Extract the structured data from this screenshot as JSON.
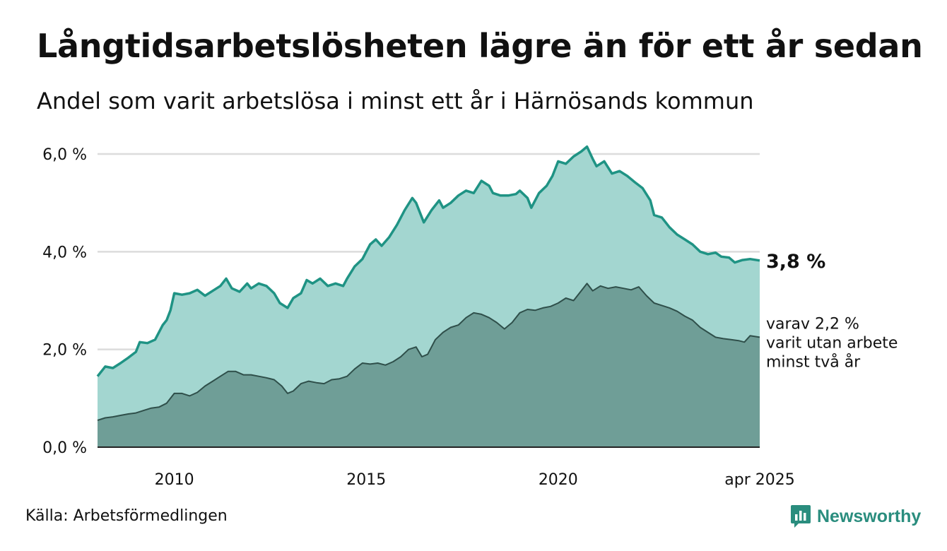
{
  "header": {
    "title": "Långtidsarbetslösheten lägre än för ett år sedan",
    "subtitle": "Andel som varit arbetslösa i minst ett år i Härnösands kommun"
  },
  "footer": {
    "source": "Källa: Arbetsförmedlingen",
    "brand": "Newsworthy"
  },
  "colors": {
    "total_line": "#1f9384",
    "total_fill": "#a3d6d0",
    "sub_line": "#2f4f4a",
    "sub_fill": "#6f9e97",
    "grid": "#dcdcdc",
    "brand": "#2a8d7e"
  },
  "chart_data": {
    "type": "area",
    "x_unit": "year",
    "ylim": [
      0,
      6.0
    ],
    "y_ticks": [
      {
        "value": 0,
        "label": "0,0 %"
      },
      {
        "value": 2,
        "label": "2,0 %"
      },
      {
        "value": 4,
        "label": "4,0 %"
      },
      {
        "value": 6,
        "label": "6,0 %"
      }
    ],
    "x_ticks": [
      {
        "value": 2010,
        "label": "2010"
      },
      {
        "value": 2015,
        "label": "2015"
      },
      {
        "value": 2020,
        "label": "2020"
      },
      {
        "value": 2025.25,
        "label": "apr 2025"
      }
    ],
    "grid": true,
    "end_label": "3,8 %",
    "note_lines": [
      "varav 2,2 %",
      "varit utan arbete",
      "minst två år"
    ],
    "series": [
      {
        "key": "total",
        "points": [
          [
            2008.0,
            1.45
          ],
          [
            2008.2,
            1.65
          ],
          [
            2008.4,
            1.62
          ],
          [
            2008.6,
            1.72
          ],
          [
            2008.8,
            1.83
          ],
          [
            2009.0,
            1.95
          ],
          [
            2009.1,
            2.15
          ],
          [
            2009.3,
            2.13
          ],
          [
            2009.5,
            2.2
          ],
          [
            2009.7,
            2.5
          ],
          [
            2009.8,
            2.6
          ],
          [
            2009.9,
            2.8
          ],
          [
            2010.0,
            3.15
          ],
          [
            2010.2,
            3.12
          ],
          [
            2010.4,
            3.15
          ],
          [
            2010.6,
            3.22
          ],
          [
            2010.8,
            3.1
          ],
          [
            2011.0,
            3.2
          ],
          [
            2011.2,
            3.3
          ],
          [
            2011.35,
            3.45
          ],
          [
            2011.5,
            3.25
          ],
          [
            2011.7,
            3.18
          ],
          [
            2011.9,
            3.35
          ],
          [
            2012.0,
            3.25
          ],
          [
            2012.2,
            3.35
          ],
          [
            2012.4,
            3.3
          ],
          [
            2012.6,
            3.15
          ],
          [
            2012.75,
            2.95
          ],
          [
            2012.95,
            2.85
          ],
          [
            2013.1,
            3.05
          ],
          [
            2013.3,
            3.15
          ],
          [
            2013.45,
            3.42
          ],
          [
            2013.6,
            3.35
          ],
          [
            2013.8,
            3.45
          ],
          [
            2014.0,
            3.3
          ],
          [
            2014.2,
            3.35
          ],
          [
            2014.4,
            3.3
          ],
          [
            2014.5,
            3.45
          ],
          [
            2014.7,
            3.7
          ],
          [
            2014.9,
            3.85
          ],
          [
            2015.1,
            4.15
          ],
          [
            2015.25,
            4.25
          ],
          [
            2015.4,
            4.12
          ],
          [
            2015.6,
            4.3
          ],
          [
            2015.8,
            4.55
          ],
          [
            2016.0,
            4.85
          ],
          [
            2016.2,
            5.1
          ],
          [
            2016.3,
            5.0
          ],
          [
            2016.5,
            4.6
          ],
          [
            2016.7,
            4.85
          ],
          [
            2016.9,
            5.05
          ],
          [
            2017.0,
            4.9
          ],
          [
            2017.2,
            5.0
          ],
          [
            2017.4,
            5.15
          ],
          [
            2017.6,
            5.25
          ],
          [
            2017.8,
            5.2
          ],
          [
            2018.0,
            5.45
          ],
          [
            2018.2,
            5.35
          ],
          [
            2018.3,
            5.2
          ],
          [
            2018.5,
            5.15
          ],
          [
            2018.7,
            5.15
          ],
          [
            2018.9,
            5.18
          ],
          [
            2019.0,
            5.25
          ],
          [
            2019.2,
            5.1
          ],
          [
            2019.3,
            4.9
          ],
          [
            2019.5,
            5.2
          ],
          [
            2019.7,
            5.35
          ],
          [
            2019.85,
            5.55
          ],
          [
            2020.0,
            5.85
          ],
          [
            2020.2,
            5.8
          ],
          [
            2020.4,
            5.95
          ],
          [
            2020.6,
            6.05
          ],
          [
            2020.75,
            6.15
          ],
          [
            2020.9,
            5.9
          ],
          [
            2021.0,
            5.75
          ],
          [
            2021.2,
            5.85
          ],
          [
            2021.4,
            5.6
          ],
          [
            2021.6,
            5.65
          ],
          [
            2021.8,
            5.55
          ],
          [
            2022.0,
            5.42
          ],
          [
            2022.2,
            5.3
          ],
          [
            2022.4,
            5.05
          ],
          [
            2022.5,
            4.75
          ],
          [
            2022.7,
            4.7
          ],
          [
            2022.9,
            4.5
          ],
          [
            2023.1,
            4.35
          ],
          [
            2023.3,
            4.25
          ],
          [
            2023.5,
            4.15
          ],
          [
            2023.7,
            4.0
          ],
          [
            2023.9,
            3.95
          ],
          [
            2024.1,
            3.98
          ],
          [
            2024.25,
            3.9
          ],
          [
            2024.45,
            3.88
          ],
          [
            2024.6,
            3.78
          ],
          [
            2024.8,
            3.83
          ],
          [
            2025.0,
            3.85
          ],
          [
            2025.25,
            3.82
          ]
        ]
      },
      {
        "key": "min_two_years",
        "points": [
          [
            2008.0,
            0.55
          ],
          [
            2008.2,
            0.6
          ],
          [
            2008.4,
            0.62
          ],
          [
            2008.6,
            0.65
          ],
          [
            2008.8,
            0.68
          ],
          [
            2009.0,
            0.7
          ],
          [
            2009.2,
            0.75
          ],
          [
            2009.4,
            0.8
          ],
          [
            2009.6,
            0.82
          ],
          [
            2009.8,
            0.9
          ],
          [
            2010.0,
            1.1
          ],
          [
            2010.2,
            1.1
          ],
          [
            2010.4,
            1.05
          ],
          [
            2010.6,
            1.12
          ],
          [
            2010.8,
            1.25
          ],
          [
            2011.0,
            1.35
          ],
          [
            2011.2,
            1.45
          ],
          [
            2011.4,
            1.55
          ],
          [
            2011.6,
            1.55
          ],
          [
            2011.8,
            1.48
          ],
          [
            2012.0,
            1.48
          ],
          [
            2012.2,
            1.45
          ],
          [
            2012.4,
            1.42
          ],
          [
            2012.6,
            1.38
          ],
          [
            2012.8,
            1.25
          ],
          [
            2012.95,
            1.1
          ],
          [
            2013.1,
            1.15
          ],
          [
            2013.3,
            1.3
          ],
          [
            2013.5,
            1.35
          ],
          [
            2013.7,
            1.32
          ],
          [
            2013.9,
            1.3
          ],
          [
            2014.1,
            1.38
          ],
          [
            2014.3,
            1.4
          ],
          [
            2014.5,
            1.45
          ],
          [
            2014.7,
            1.6
          ],
          [
            2014.9,
            1.72
          ],
          [
            2015.1,
            1.7
          ],
          [
            2015.3,
            1.72
          ],
          [
            2015.5,
            1.68
          ],
          [
            2015.7,
            1.75
          ],
          [
            2015.9,
            1.85
          ],
          [
            2016.1,
            2.0
          ],
          [
            2016.3,
            2.05
          ],
          [
            2016.45,
            1.85
          ],
          [
            2016.6,
            1.9
          ],
          [
            2016.8,
            2.2
          ],
          [
            2017.0,
            2.35
          ],
          [
            2017.2,
            2.45
          ],
          [
            2017.4,
            2.5
          ],
          [
            2017.6,
            2.65
          ],
          [
            2017.8,
            2.75
          ],
          [
            2018.0,
            2.72
          ],
          [
            2018.2,
            2.65
          ],
          [
            2018.4,
            2.55
          ],
          [
            2018.6,
            2.42
          ],
          [
            2018.8,
            2.55
          ],
          [
            2019.0,
            2.75
          ],
          [
            2019.2,
            2.82
          ],
          [
            2019.4,
            2.8
          ],
          [
            2019.6,
            2.85
          ],
          [
            2019.8,
            2.88
          ],
          [
            2020.0,
            2.95
          ],
          [
            2020.2,
            3.05
          ],
          [
            2020.4,
            3.0
          ],
          [
            2020.6,
            3.2
          ],
          [
            2020.75,
            3.35
          ],
          [
            2020.9,
            3.2
          ],
          [
            2021.1,
            3.3
          ],
          [
            2021.3,
            3.25
          ],
          [
            2021.5,
            3.28
          ],
          [
            2021.7,
            3.25
          ],
          [
            2021.9,
            3.22
          ],
          [
            2022.1,
            3.28
          ],
          [
            2022.3,
            3.1
          ],
          [
            2022.5,
            2.95
          ],
          [
            2022.7,
            2.9
          ],
          [
            2022.9,
            2.85
          ],
          [
            2023.1,
            2.78
          ],
          [
            2023.3,
            2.68
          ],
          [
            2023.5,
            2.6
          ],
          [
            2023.7,
            2.45
          ],
          [
            2023.9,
            2.35
          ],
          [
            2024.1,
            2.25
          ],
          [
            2024.3,
            2.22
          ],
          [
            2024.5,
            2.2
          ],
          [
            2024.7,
            2.18
          ],
          [
            2024.85,
            2.15
          ],
          [
            2025.0,
            2.28
          ],
          [
            2025.25,
            2.25
          ]
        ]
      }
    ]
  }
}
